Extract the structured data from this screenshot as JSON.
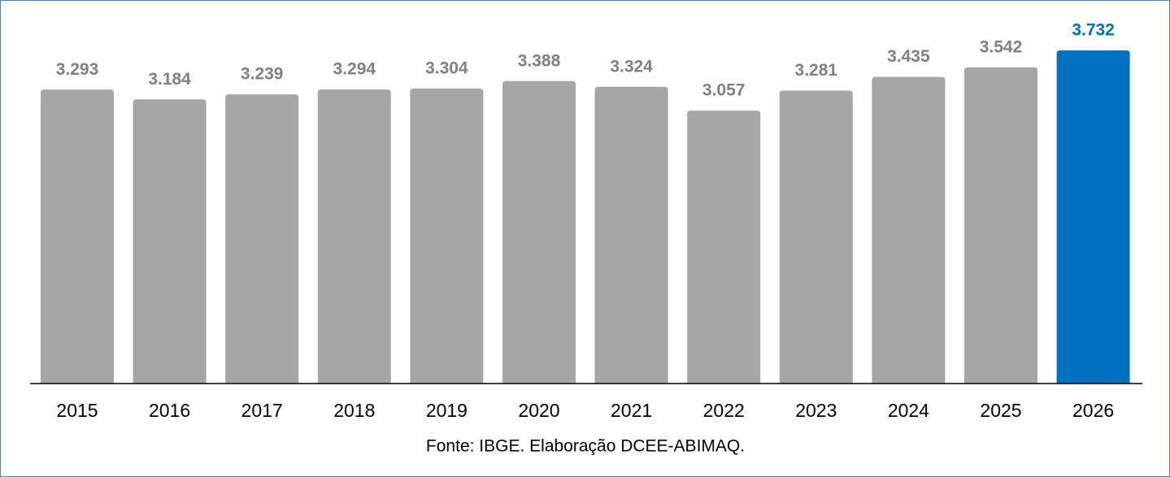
{
  "chart_data": {
    "type": "bar",
    "categories": [
      "2015",
      "2016",
      "2017",
      "2018",
      "2019",
      "2020",
      "2021",
      "2022",
      "2023",
      "2024",
      "2025",
      "2026"
    ],
    "values": [
      3.293,
      3.184,
      3.239,
      3.294,
      3.304,
      3.388,
      3.324,
      3.057,
      3.281,
      3.435,
      3.542,
      3.732
    ],
    "colors": [
      "#a6a6a6",
      "#a6a6a6",
      "#a6a6a6",
      "#a6a6a6",
      "#a6a6a6",
      "#a6a6a6",
      "#a6a6a6",
      "#a6a6a6",
      "#a6a6a6",
      "#a6a6a6",
      "#a6a6a6",
      "#0070c0"
    ],
    "label_colors": [
      "#808080",
      "#808080",
      "#808080",
      "#808080",
      "#808080",
      "#808080",
      "#808080",
      "#808080",
      "#808080",
      "#808080",
      "#808080",
      "#0070c0"
    ],
    "source": "Fonte: IBGE. Elaboração DCEE-ABIMAQ."
  }
}
